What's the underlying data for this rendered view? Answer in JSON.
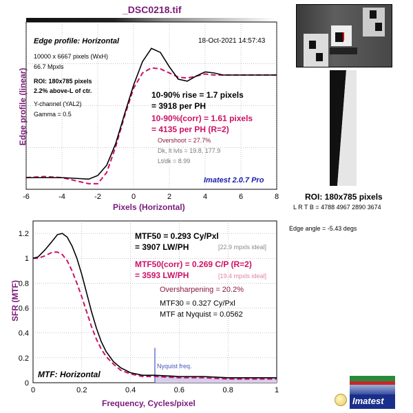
{
  "file_title": "_DSC0218.tif",
  "colors": {
    "measured": "#000000",
    "corrected": "#cc1166",
    "title_purple": "#7a1a7a",
    "mtf_fill": "#d7cdee",
    "nyquist_line": "#4455bb",
    "watermark": "#1a1aaa"
  },
  "edge_panel": {
    "heading": "Edge profile: Horizontal",
    "timestamp": "18-Oct-2021 14:57:43",
    "info_lines": [
      "10000 x 6667 pixels (WxH)",
      "66.7 Mpxls"
    ],
    "roi_lines": [
      "ROI: 180x785 pixels",
      "2.2% above-L of ctr."
    ],
    "channel_lines": [
      "Y-channel  (YAL2)",
      "Gamma = 0.5"
    ],
    "rise_lines": [
      "10-90% rise = 1.7 pixels",
      "= 3918 per PH"
    ],
    "corr_lines": [
      "10-90%(corr) = 1.61 pixels",
      "= 4135 per PH  (R=2)"
    ],
    "overshoot": "Overshoot = 27.7%",
    "levels": "Dk, lt lvls = 19.8, 177.9",
    "ratio": "Lt/dk = 8.99",
    "version": "Imatest 2.0.7 Pro",
    "ylabel": "Edge profile (linear)",
    "xlabel": "Pixels (Horizontal)"
  },
  "mtf_panel": {
    "heading": "MTF: Horizontal",
    "mtf50_lines": [
      "MTF50 = 0.293 Cy/Pxl",
      "= 3907 LW/PH"
    ],
    "ideal1": "[22.9 mpxls ideal]",
    "corr_lines": [
      "MTF50(corr) = 0.269 C/P  (R=2)",
      "= 3593 LW/PH"
    ],
    "ideal2": "[19.4 mpxls ideal]",
    "oversharpening": "Oversharpening = 20.2%",
    "mtf30": "MTF30 = 0.327 Cy/Pxl",
    "nyquist_mtf": "MTF at Nyquist = 0.0562",
    "nyquist_label": "Nyquist freq.",
    "ylabel": "SFR (MTF)",
    "xlabel": "Frequency, Cycles/pixel"
  },
  "side": {
    "roi_caption": "ROI: 180x785 pixels",
    "lrtb": "L R  T B = 4788 4967  2890 3674",
    "edge_angle": "Edge angle = -5.43 degs",
    "logo_text": "Imatest"
  },
  "chart_data": [
    {
      "type": "line",
      "title": "Edge profile: Horizontal",
      "xlabel": "Pixels (Horizontal)",
      "ylabel": "Edge profile (linear)",
      "xlim": [
        -6,
        8
      ],
      "x_ticks": [
        -6,
        -4,
        -2,
        0,
        2,
        4,
        6,
        8
      ],
      "series": [
        {
          "x": [
            -6,
            -5,
            -4,
            -3,
            -2.5,
            -2,
            -1.5,
            -1,
            -0.5,
            0,
            0.5,
            1,
            1.5,
            2,
            2.5,
            3,
            3.5,
            4,
            4.5,
            5,
            6,
            7,
            8
          ],
          "values": [
            0.0,
            0.0,
            0.0,
            -0.01,
            -0.015,
            0.02,
            0.12,
            0.33,
            0.62,
            0.9,
            1.13,
            1.26,
            1.22,
            1.08,
            0.96,
            0.94,
            0.99,
            1.03,
            1.02,
            1.0,
            1.0,
            1.0,
            1.0
          ]
        },
        {
          "x": [
            -6,
            -5,
            -4,
            -3.5,
            -3,
            -2.5,
            -2,
            -1.5,
            -1,
            -0.5,
            0,
            0.5,
            1,
            1.5,
            2,
            2.5,
            3,
            3.5,
            4,
            4.5,
            5,
            6,
            7,
            8
          ],
          "values": [
            0.0,
            0.01,
            0.0,
            -0.02,
            -0.04,
            -0.06,
            -0.06,
            0.05,
            0.3,
            0.6,
            0.87,
            1.02,
            1.07,
            1.06,
            1.02,
            0.98,
            0.97,
            0.99,
            1.01,
            1.0,
            1.0,
            1.0,
            1.0,
            1.0
          ]
        }
      ]
    },
    {
      "type": "line",
      "title": "MTF: Horizontal",
      "xlabel": "Frequency, Cycles/pixel",
      "ylabel": "SFR (MTF)",
      "xlim": [
        0,
        1
      ],
      "ylim": [
        0,
        1.3
      ],
      "x_ticks": [
        0,
        0.2,
        0.4,
        0.6,
        0.8,
        1
      ],
      "y_ticks": [
        0,
        0.2,
        0.4,
        0.6,
        0.8,
        1,
        1.2
      ],
      "nyquist": 0.5,
      "series": [
        {
          "x": [
            0,
            0.02,
            0.05,
            0.08,
            0.1,
            0.12,
            0.14,
            0.16,
            0.18,
            0.2,
            0.22,
            0.24,
            0.26,
            0.28,
            0.3,
            0.33,
            0.36,
            0.4,
            0.45,
            0.5,
            0.6,
            0.7,
            0.8,
            0.9,
            1.0
          ],
          "values": [
            1.0,
            1.01,
            1.07,
            1.14,
            1.19,
            1.2,
            1.17,
            1.1,
            1.0,
            0.87,
            0.72,
            0.57,
            0.44,
            0.33,
            0.25,
            0.17,
            0.12,
            0.08,
            0.06,
            0.06,
            0.05,
            0.05,
            0.04,
            0.04,
            0.04
          ]
        },
        {
          "x": [
            0,
            0.02,
            0.05,
            0.08,
            0.1,
            0.12,
            0.14,
            0.16,
            0.18,
            0.2,
            0.22,
            0.24,
            0.26,
            0.28,
            0.3,
            0.33,
            0.36,
            0.4,
            0.45,
            0.5,
            0.6,
            0.7,
            0.8,
            0.9,
            1.0
          ],
          "values": [
            1.0,
            1.0,
            1.02,
            1.05,
            1.05,
            1.03,
            0.98,
            0.9,
            0.8,
            0.69,
            0.57,
            0.45,
            0.35,
            0.27,
            0.21,
            0.15,
            0.1,
            0.07,
            0.05,
            0.05,
            0.04,
            0.04,
            0.03,
            0.03,
            0.03
          ]
        }
      ]
    }
  ]
}
